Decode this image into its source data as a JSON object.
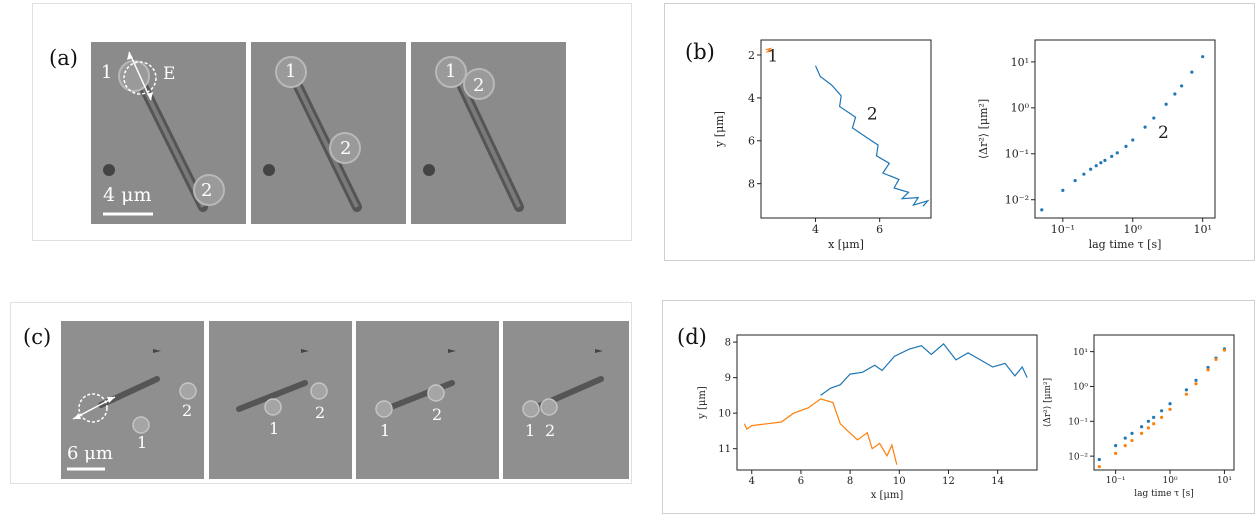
{
  "panels": {
    "a": {
      "label": "(a)",
      "scale_bar": "4 μm",
      "bead_labels": [
        "1",
        "2"
      ],
      "field_label": "E"
    },
    "b": {
      "label": "(b)"
    },
    "c": {
      "label": "(c)",
      "scale_bar": "6 μm",
      "bead_labels": [
        "1",
        "2"
      ]
    },
    "d": {
      "label": "(d)"
    }
  },
  "colors": {
    "series1": "#ff7f0e",
    "series2": "#1f77b4",
    "background": "#8d8d8d"
  },
  "chart_data": [
    {
      "id": "b-trajectory",
      "type": "line",
      "xlabel": "x [μm]",
      "ylabel": "y [μm]",
      "xlim": [
        2.3,
        7.6
      ],
      "ylim": [
        9.6,
        1.3
      ],
      "xticks": [
        4,
        6
      ],
      "yticks": [
        2,
        4,
        6,
        8
      ],
      "annotations": [
        "1",
        "2"
      ],
      "series": [
        {
          "points": [
            [
              2.45,
              1.75
            ],
            [
              2.6,
              1.7
            ],
            [
              2.5,
              1.85
            ],
            [
              2.65,
              1.8
            ]
          ]
        },
        {
          "points": [
            [
              4.0,
              2.5
            ],
            [
              4.15,
              3.0
            ],
            [
              4.5,
              3.4
            ],
            [
              4.8,
              3.9
            ],
            [
              4.75,
              4.4
            ],
            [
              5.25,
              4.9
            ],
            [
              5.15,
              5.4
            ],
            [
              5.55,
              5.8
            ],
            [
              5.95,
              6.2
            ],
            [
              5.9,
              6.7
            ],
            [
              6.3,
              7.05
            ],
            [
              6.1,
              7.5
            ],
            [
              6.6,
              7.8
            ],
            [
              6.45,
              8.2
            ],
            [
              6.9,
              8.4
            ],
            [
              6.7,
              8.7
            ],
            [
              7.2,
              8.65
            ],
            [
              7.05,
              9.0
            ],
            [
              7.5,
              8.8
            ],
            [
              7.35,
              9.05
            ]
          ]
        }
      ]
    },
    {
      "id": "b-msd",
      "type": "scatter",
      "xlabel": "lag time τ [s]",
      "ylabel": "⟨Δr²⟩ [μm²]",
      "log_x": true,
      "log_y": true,
      "xlim": [
        0.04,
        15
      ],
      "ylim": [
        0.004,
        30
      ],
      "xtick_labels": [
        "10⁻¹",
        "10⁰",
        "10¹"
      ],
      "ytick_labels": [
        "10⁻²",
        "10⁻¹",
        "10⁰",
        "10¹"
      ],
      "annotations": [
        "2"
      ],
      "series": [
        {
          "points": [
            [
              0.05,
              0.006
            ],
            [
              0.1,
              0.016
            ],
            [
              0.15,
              0.026
            ],
            [
              0.2,
              0.036
            ],
            [
              0.25,
              0.046
            ],
            [
              0.3,
              0.055
            ],
            [
              0.35,
              0.064
            ],
            [
              0.4,
              0.072
            ],
            [
              0.5,
              0.088
            ],
            [
              0.6,
              0.105
            ],
            [
              0.8,
              0.145
            ],
            [
              1.0,
              0.2
            ],
            [
              1.5,
              0.38
            ],
            [
              2,
              0.6
            ],
            [
              3,
              1.2
            ],
            [
              4,
              2.0
            ],
            [
              5,
              3.0
            ],
            [
              7,
              6.0
            ],
            [
              10,
              13
            ]
          ]
        }
      ]
    },
    {
      "id": "d-trajectory",
      "type": "line",
      "xlabel": "x [μm]",
      "ylabel": "y [μm]",
      "xlim": [
        3.4,
        15.6
      ],
      "ylim": [
        11.6,
        7.8
      ],
      "xticks": [
        4,
        6,
        8,
        10,
        12,
        14
      ],
      "yticks": [
        8,
        9,
        10,
        11
      ],
      "series": [
        {
          "points": [
            [
              6.8,
              9.5
            ],
            [
              7.2,
              9.3
            ],
            [
              7.6,
              9.2
            ],
            [
              8.0,
              8.9
            ],
            [
              8.5,
              8.85
            ],
            [
              9.0,
              8.65
            ],
            [
              9.3,
              8.8
            ],
            [
              9.8,
              8.4
            ],
            [
              10.4,
              8.2
            ],
            [
              10.9,
              8.1
            ],
            [
              11.3,
              8.35
            ],
            [
              11.8,
              8.05
            ],
            [
              12.3,
              8.5
            ],
            [
              12.8,
              8.3
            ],
            [
              13.3,
              8.5
            ],
            [
              13.8,
              8.7
            ],
            [
              14.3,
              8.6
            ],
            [
              14.7,
              8.95
            ],
            [
              15.0,
              8.7
            ],
            [
              15.2,
              9.0
            ]
          ]
        },
        {
          "points": [
            [
              3.7,
              10.3
            ],
            [
              3.8,
              10.45
            ],
            [
              4.0,
              10.35
            ],
            [
              4.6,
              10.3
            ],
            [
              5.2,
              10.25
            ],
            [
              5.7,
              10.0
            ],
            [
              6.3,
              9.85
            ],
            [
              6.8,
              9.6
            ],
            [
              7.3,
              9.7
            ],
            [
              7.6,
              10.3
            ],
            [
              7.9,
              10.5
            ],
            [
              8.3,
              10.75
            ],
            [
              8.7,
              10.55
            ],
            [
              8.9,
              11.0
            ],
            [
              9.2,
              10.85
            ],
            [
              9.5,
              11.2
            ],
            [
              9.7,
              10.9
            ],
            [
              9.9,
              11.45
            ]
          ]
        }
      ]
    },
    {
      "id": "d-msd",
      "type": "scatter",
      "xlabel": "lag time τ [s]",
      "ylabel": "⟨Δr²⟩ [μm²]",
      "log_x": true,
      "log_y": true,
      "xlim": [
        0.04,
        15
      ],
      "ylim": [
        0.004,
        30
      ],
      "xtick_labels": [
        "10⁻¹",
        "10⁰",
        "10¹"
      ],
      "ytick_labels": [
        "10⁻²",
        "10⁻¹",
        "10⁰",
        "10¹"
      ],
      "series": [
        {
          "points": [
            [
              0.05,
              0.008
            ],
            [
              0.1,
              0.02
            ],
            [
              0.15,
              0.033
            ],
            [
              0.2,
              0.045
            ],
            [
              0.3,
              0.07
            ],
            [
              0.4,
              0.1
            ],
            [
              0.5,
              0.13
            ],
            [
              0.7,
              0.2
            ],
            [
              1.0,
              0.32
            ],
            [
              2,
              0.8
            ],
            [
              3,
              1.5
            ],
            [
              5,
              3.5
            ],
            [
              7,
              6.5
            ],
            [
              10,
              12
            ]
          ]
        },
        {
          "points": [
            [
              0.05,
              0.005
            ],
            [
              0.1,
              0.012
            ],
            [
              0.15,
              0.02
            ],
            [
              0.2,
              0.028
            ],
            [
              0.3,
              0.045
            ],
            [
              0.4,
              0.065
            ],
            [
              0.5,
              0.085
            ],
            [
              0.7,
              0.13
            ],
            [
              1.0,
              0.22
            ],
            [
              2,
              0.6
            ],
            [
              3,
              1.2
            ],
            [
              5,
              3.0
            ],
            [
              7,
              6.0
            ],
            [
              10,
              11
            ]
          ]
        }
      ]
    }
  ]
}
